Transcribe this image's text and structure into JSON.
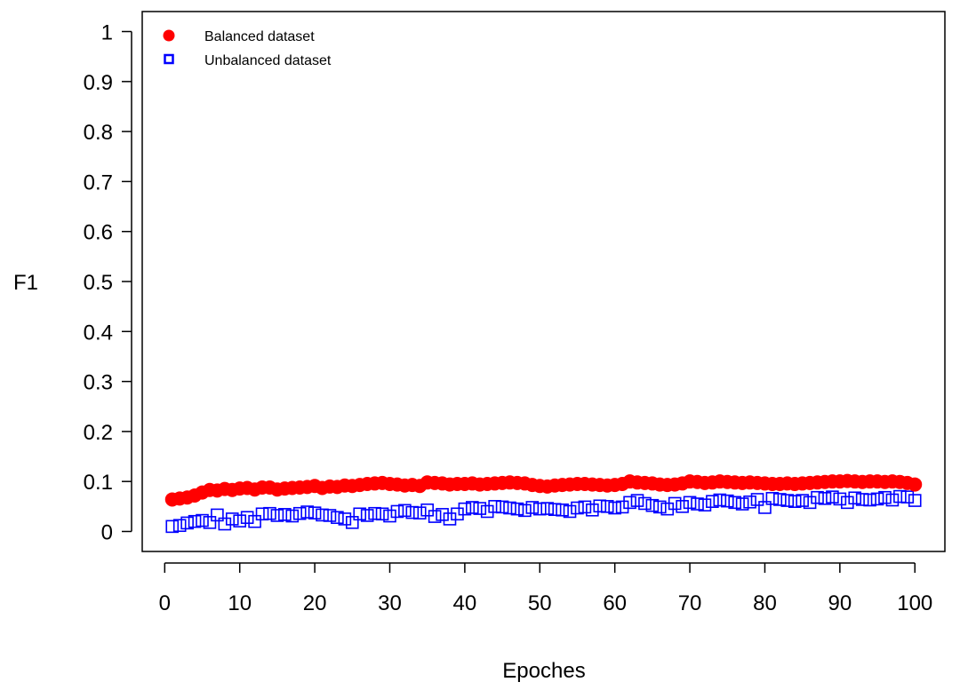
{
  "chart_data": {
    "type": "scatter",
    "title": "",
    "xlabel": "Epoches",
    "ylabel": "F1",
    "xlim": [
      -3,
      104
    ],
    "ylim": [
      -0.04,
      1.04
    ],
    "xticks": [
      0,
      10,
      20,
      30,
      40,
      50,
      60,
      70,
      80,
      90,
      100
    ],
    "yticks": [
      0,
      0.1,
      0.2,
      0.3,
      0.4,
      0.5,
      0.6,
      0.7,
      0.8,
      0.9,
      1
    ],
    "ytick_labels": [
      "0",
      "0.1",
      "0.2",
      "0.3",
      "0.4",
      "0.5",
      "0.6",
      "0.7",
      "0.8",
      "0.9",
      "1"
    ],
    "grid": false,
    "legend_position": "top-left",
    "x": [
      1,
      2,
      3,
      4,
      5,
      6,
      7,
      8,
      9,
      10,
      11,
      12,
      13,
      14,
      15,
      16,
      17,
      18,
      19,
      20,
      21,
      22,
      23,
      24,
      25,
      26,
      27,
      28,
      29,
      30,
      31,
      32,
      33,
      34,
      35,
      36,
      37,
      38,
      39,
      40,
      41,
      42,
      43,
      44,
      45,
      46,
      47,
      48,
      49,
      50,
      51,
      52,
      53,
      54,
      55,
      56,
      57,
      58,
      59,
      60,
      61,
      62,
      63,
      64,
      65,
      66,
      67,
      68,
      69,
      70,
      71,
      72,
      73,
      74,
      75,
      76,
      77,
      78,
      79,
      80,
      81,
      82,
      83,
      84,
      85,
      86,
      87,
      88,
      89,
      90,
      91,
      92,
      93,
      94,
      95,
      96,
      97,
      98,
      99,
      100
    ],
    "series": [
      {
        "name": "Balanced dataset",
        "marker": "filled-circle",
        "color": "#ff0000",
        "values": [
          0.064,
          0.066,
          0.068,
          0.072,
          0.078,
          0.083,
          0.082,
          0.085,
          0.083,
          0.086,
          0.087,
          0.084,
          0.088,
          0.088,
          0.084,
          0.086,
          0.087,
          0.088,
          0.089,
          0.091,
          0.087,
          0.09,
          0.089,
          0.092,
          0.091,
          0.093,
          0.095,
          0.096,
          0.097,
          0.095,
          0.094,
          0.092,
          0.093,
          0.091,
          0.098,
          0.097,
          0.096,
          0.094,
          0.095,
          0.095,
          0.096,
          0.094,
          0.095,
          0.096,
          0.097,
          0.098,
          0.097,
          0.096,
          0.093,
          0.091,
          0.09,
          0.092,
          0.093,
          0.094,
          0.095,
          0.095,
          0.094,
          0.093,
          0.092,
          0.093,
          0.095,
          0.1,
          0.098,
          0.097,
          0.096,
          0.094,
          0.093,
          0.094,
          0.096,
          0.1,
          0.099,
          0.097,
          0.098,
          0.1,
          0.099,
          0.098,
          0.097,
          0.098,
          0.097,
          0.096,
          0.095,
          0.095,
          0.096,
          0.095,
          0.096,
          0.097,
          0.098,
          0.099,
          0.1,
          0.1,
          0.101,
          0.1,
          0.099,
          0.1,
          0.1,
          0.099,
          0.1,
          0.099,
          0.097,
          0.094
        ]
      },
      {
        "name": "Unbalanced dataset",
        "marker": "open-square",
        "color": "#0000ff",
        "values": [
          0.01,
          0.012,
          0.017,
          0.02,
          0.022,
          0.018,
          0.033,
          0.015,
          0.025,
          0.021,
          0.028,
          0.02,
          0.035,
          0.036,
          0.032,
          0.034,
          0.031,
          0.036,
          0.039,
          0.037,
          0.033,
          0.032,
          0.028,
          0.025,
          0.018,
          0.035,
          0.032,
          0.036,
          0.035,
          0.031,
          0.04,
          0.042,
          0.038,
          0.037,
          0.043,
          0.03,
          0.034,
          0.025,
          0.035,
          0.045,
          0.048,
          0.046,
          0.04,
          0.05,
          0.049,
          0.047,
          0.045,
          0.042,
          0.048,
          0.045,
          0.046,
          0.044,
          0.043,
          0.04,
          0.047,
          0.049,
          0.043,
          0.051,
          0.05,
          0.047,
          0.049,
          0.058,
          0.062,
          0.056,
          0.052,
          0.049,
          0.045,
          0.056,
          0.05,
          0.058,
          0.055,
          0.053,
          0.06,
          0.063,
          0.061,
          0.058,
          0.055,
          0.059,
          0.064,
          0.048,
          0.066,
          0.064,
          0.062,
          0.06,
          0.062,
          0.058,
          0.068,
          0.066,
          0.069,
          0.065,
          0.058,
          0.067,
          0.064,
          0.063,
          0.065,
          0.068,
          0.063,
          0.07,
          0.069,
          0.062
        ]
      }
    ]
  }
}
